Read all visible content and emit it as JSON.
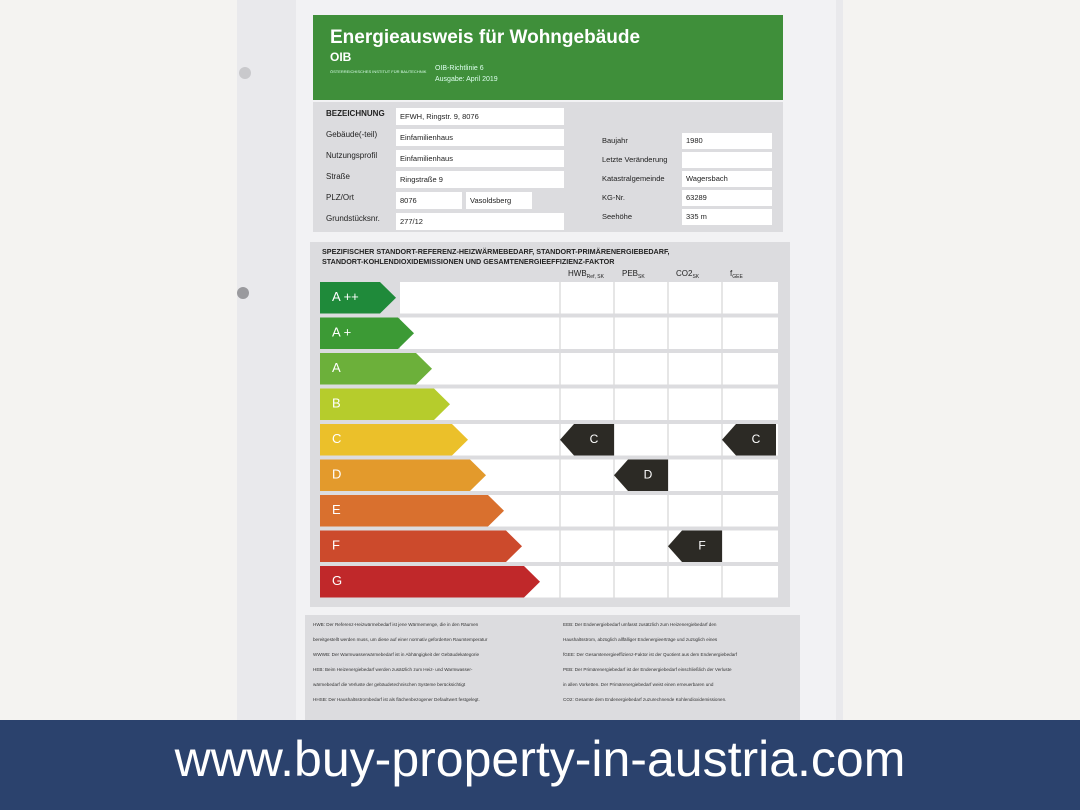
{
  "header": {
    "title": "Energieausweis für Wohngebäude",
    "logo": "OIB",
    "logo_sub": "ÖSTERREICHISCHES INSTITUT FÜR BAUTECHNIK",
    "guideline": "OIB-Richtlinie 6",
    "edition": "Ausgabe: April 2019"
  },
  "fields_left": [
    {
      "label": "BEZEICHNUNG",
      "values": [
        "EFWH, Ringstr. 9, 8076"
      ]
    },
    {
      "label": "Gebäude(-teil)",
      "values": [
        "Einfamilienhaus"
      ]
    },
    {
      "label": "Nutzungsprofil",
      "values": [
        "Einfamilienhaus"
      ]
    },
    {
      "label": "Straße",
      "values": [
        "Ringstraße 9"
      ]
    },
    {
      "label": "PLZ/Ort",
      "values": [
        "8076",
        "Vasoldsberg"
      ]
    },
    {
      "label": "Grundstücksnr.",
      "values": [
        "277/12"
      ]
    }
  ],
  "fields_right": [
    {
      "label": "Baujahr",
      "values": [
        "1980"
      ]
    },
    {
      "label": "Letzte Veränderung",
      "values": []
    },
    {
      "label": "Katastralgemeinde",
      "values": [
        "Wagersbach"
      ]
    },
    {
      "label": "KG-Nr.",
      "values": [
        "63289"
      ]
    },
    {
      "label": "Seehöhe",
      "values": [
        "335 m"
      ]
    }
  ],
  "energy": {
    "heading": [
      "SPEZIFISCHER STANDORT-REFERENZ-HEIZWÄRMEBEDARF, STANDORT-PRIMÄRENERGIEBEDARF,",
      "STANDORT-KOHLENDIOXIDEMISSIONEN UND GESAMTENERGIEEFFIZIENZ-FAKTOR"
    ],
    "columns": [
      {
        "main": "HWB",
        "sub": "Ref, SK"
      },
      {
        "main": "PEB",
        "sub": "SK"
      },
      {
        "main": "CO2",
        "sub": "SK"
      },
      {
        "main": "f",
        "sub": "GEE"
      }
    ],
    "classes": [
      {
        "label": "A ++",
        "color": "#1f8a3a"
      },
      {
        "label": "A +",
        "color": "#3c9a35"
      },
      {
        "label": "A",
        "color": "#6cb03a"
      },
      {
        "label": "B",
        "color": "#b6cc2c"
      },
      {
        "label": "C",
        "color": "#ebc02a"
      },
      {
        "label": "D",
        "color": "#e39a2c"
      },
      {
        "label": "E",
        "color": "#d9702e"
      },
      {
        "label": "F",
        "color": "#cc4a2c"
      },
      {
        "label": "G",
        "color": "#c0282a"
      }
    ],
    "ratings": [
      {
        "column": 0,
        "class": "C"
      },
      {
        "column": 1,
        "class": "D"
      },
      {
        "column": 2,
        "class": "F"
      },
      {
        "column": 3,
        "class": "C"
      }
    ]
  },
  "footnotes": {
    "left": [
      "HWB: Der Referenz-Heizwärmebedarf ist jene Wärmemenge, die in den Räumen",
      "bereitgestellt werden muss, um diese auf einer normativ geforderten Raumtemperatur",
      "WWWB: Der Warmwasserwärmebedarf ist in Abhängigkeit der Gebäudekategorie",
      "HEB: Beim Heizenergiebedarf werden zusätzlich zum Heiz- und Warmwasser-",
      "wärmebedarf die Verluste der gebäudetechnischen Systeme berücksichtigt",
      "HHSB: Der Haushaltsstrombedarf ist als flächenbezogener Defaultwert festgelegt."
    ],
    "right": [
      "EEB: Der Endenergiebedarf umfasst zusätzlich zum Heizenergiebedarf den",
      "Haushaltsstrom, abzüglich allfälliger Endenergieerträge und zuzüglich eines",
      "fGEE: Der Gesamtenergieeffizienz-Faktor ist der Quotient aus dem Endenergiebedarf",
      "PEB: Der Primärenergiebedarf ist der Endenergiebedarf einschließlich der Verluste",
      "in allen Vorketten. Der Primärenergiebedarf weist einen erneuerbaren und",
      "CO2: Gesamte dem Endenergiebedarf zuzurechnende Kohlendioxidemissionen."
    ]
  },
  "banner": {
    "url": "www.buy-property-in-austria.com"
  }
}
